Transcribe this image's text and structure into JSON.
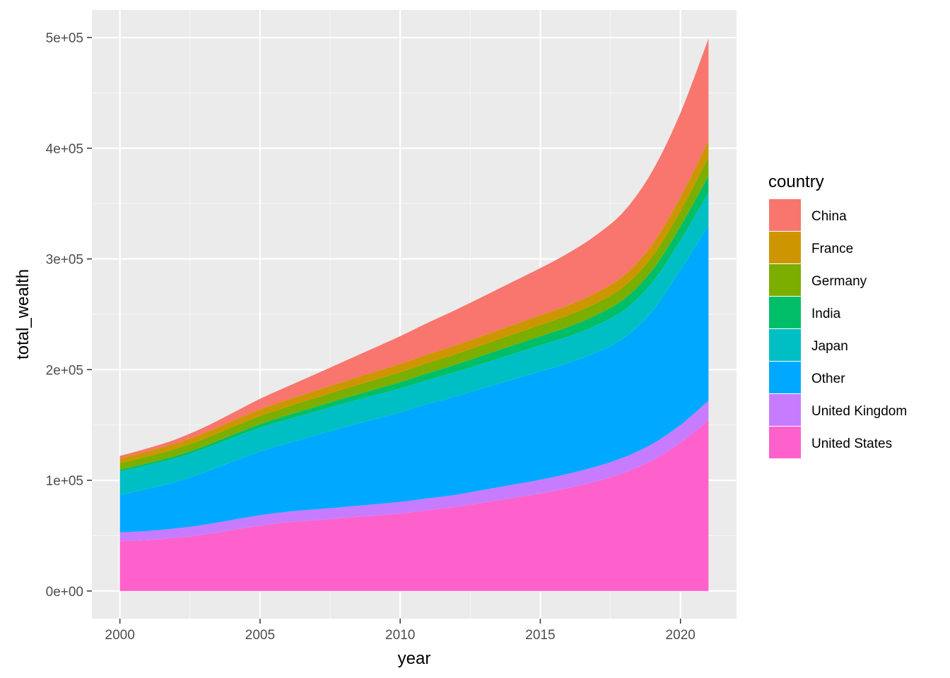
{
  "chart_data": {
    "type": "area",
    "stacked": true,
    "xlabel": "year",
    "ylabel": "total_wealth",
    "xlim": [
      1999,
      2022
    ],
    "ylim": [
      -25000,
      525000
    ],
    "x_ticks": [
      2000,
      2005,
      2010,
      2015,
      2020
    ],
    "y_ticks": [
      0,
      100000,
      200000,
      300000,
      400000,
      500000
    ],
    "x_tick_labels": [
      "2000",
      "2005",
      "2010",
      "2015",
      "2020"
    ],
    "y_tick_labels": [
      "0e+00",
      "1e+05",
      "2e+05",
      "3e+05",
      "4e+05",
      "5e+05"
    ],
    "grid": true,
    "legend": {
      "title": "country",
      "position": "right"
    },
    "x": [
      2000,
      2001,
      2002,
      2003,
      2004,
      2005,
      2006,
      2007,
      2008,
      2009,
      2010,
      2011,
      2012,
      2013,
      2014,
      2015,
      2016,
      2017,
      2018,
      2019,
      2020,
      2021
    ],
    "series": [
      {
        "name": "China",
        "color": "#F8766D",
        "values": [
          2000,
          2600,
          3500,
          5000,
          7000,
          9500,
          12000,
          15000,
          18000,
          21500,
          25000,
          28500,
          32000,
          35500,
          39000,
          42500,
          47000,
          52000,
          58000,
          66000,
          76000,
          92000
        ]
      },
      {
        "name": "France",
        "color": "#CD9600",
        "values": [
          4500,
          4700,
          5000,
          5300,
          5600,
          6000,
          6300,
          6600,
          6900,
          7200,
          7500,
          7800,
          8000,
          8200,
          8500,
          8800,
          9100,
          9500,
          10000,
          11000,
          12500,
          15000
        ]
      },
      {
        "name": "Germany",
        "color": "#7CAE00",
        "values": [
          6000,
          6200,
          6500,
          6800,
          7100,
          7500,
          7800,
          8100,
          8400,
          8700,
          9000,
          9300,
          9500,
          9700,
          10000,
          10200,
          10500,
          10900,
          11500,
          12500,
          14000,
          17000
        ]
      },
      {
        "name": "India",
        "color": "#00BE67",
        "values": [
          1500,
          1700,
          2000,
          2300,
          2700,
          3200,
          3700,
          4200,
          4700,
          5200,
          5700,
          6200,
          6700,
          7200,
          7700,
          8200,
          8700,
          9300,
          10000,
          11000,
          12500,
          15000
        ]
      },
      {
        "name": "Japan",
        "color": "#00BFC4",
        "values": [
          21000,
          21500,
          21500,
          21500,
          21500,
          21500,
          21500,
          21500,
          21500,
          21500,
          21500,
          21500,
          22000,
          22500,
          23000,
          23500,
          24000,
          24500,
          25000,
          26000,
          27000,
          30000
        ]
      },
      {
        "name": "Other",
        "color": "#00A9FF",
        "values": [
          34000,
          38000,
          42000,
          47000,
          52500,
          57500,
          62000,
          67000,
          72000,
          76500,
          81000,
          85500,
          89000,
          92000,
          95000,
          98000,
          100000,
          103000,
          108000,
          120000,
          140000,
          158000
        ]
      },
      {
        "name": "United Kingdom",
        "color": "#C77CFF",
        "values": [
          8000,
          8300,
          8600,
          8900,
          9200,
          9500,
          9700,
          9800,
          10000,
          10200,
          10500,
          10700,
          11000,
          11500,
          12000,
          12500,
          13000,
          13500,
          14000,
          15000,
          16000,
          18000
        ]
      },
      {
        "name": "United States",
        "color": "#FF61CC",
        "values": [
          45000,
          46000,
          48000,
          51000,
          55000,
          59000,
          62000,
          64000,
          66000,
          68000,
          70000,
          73000,
          76000,
          80000,
          84000,
          88000,
          93000,
          99000,
          107000,
          118000,
          134000,
          154000
        ]
      }
    ]
  }
}
